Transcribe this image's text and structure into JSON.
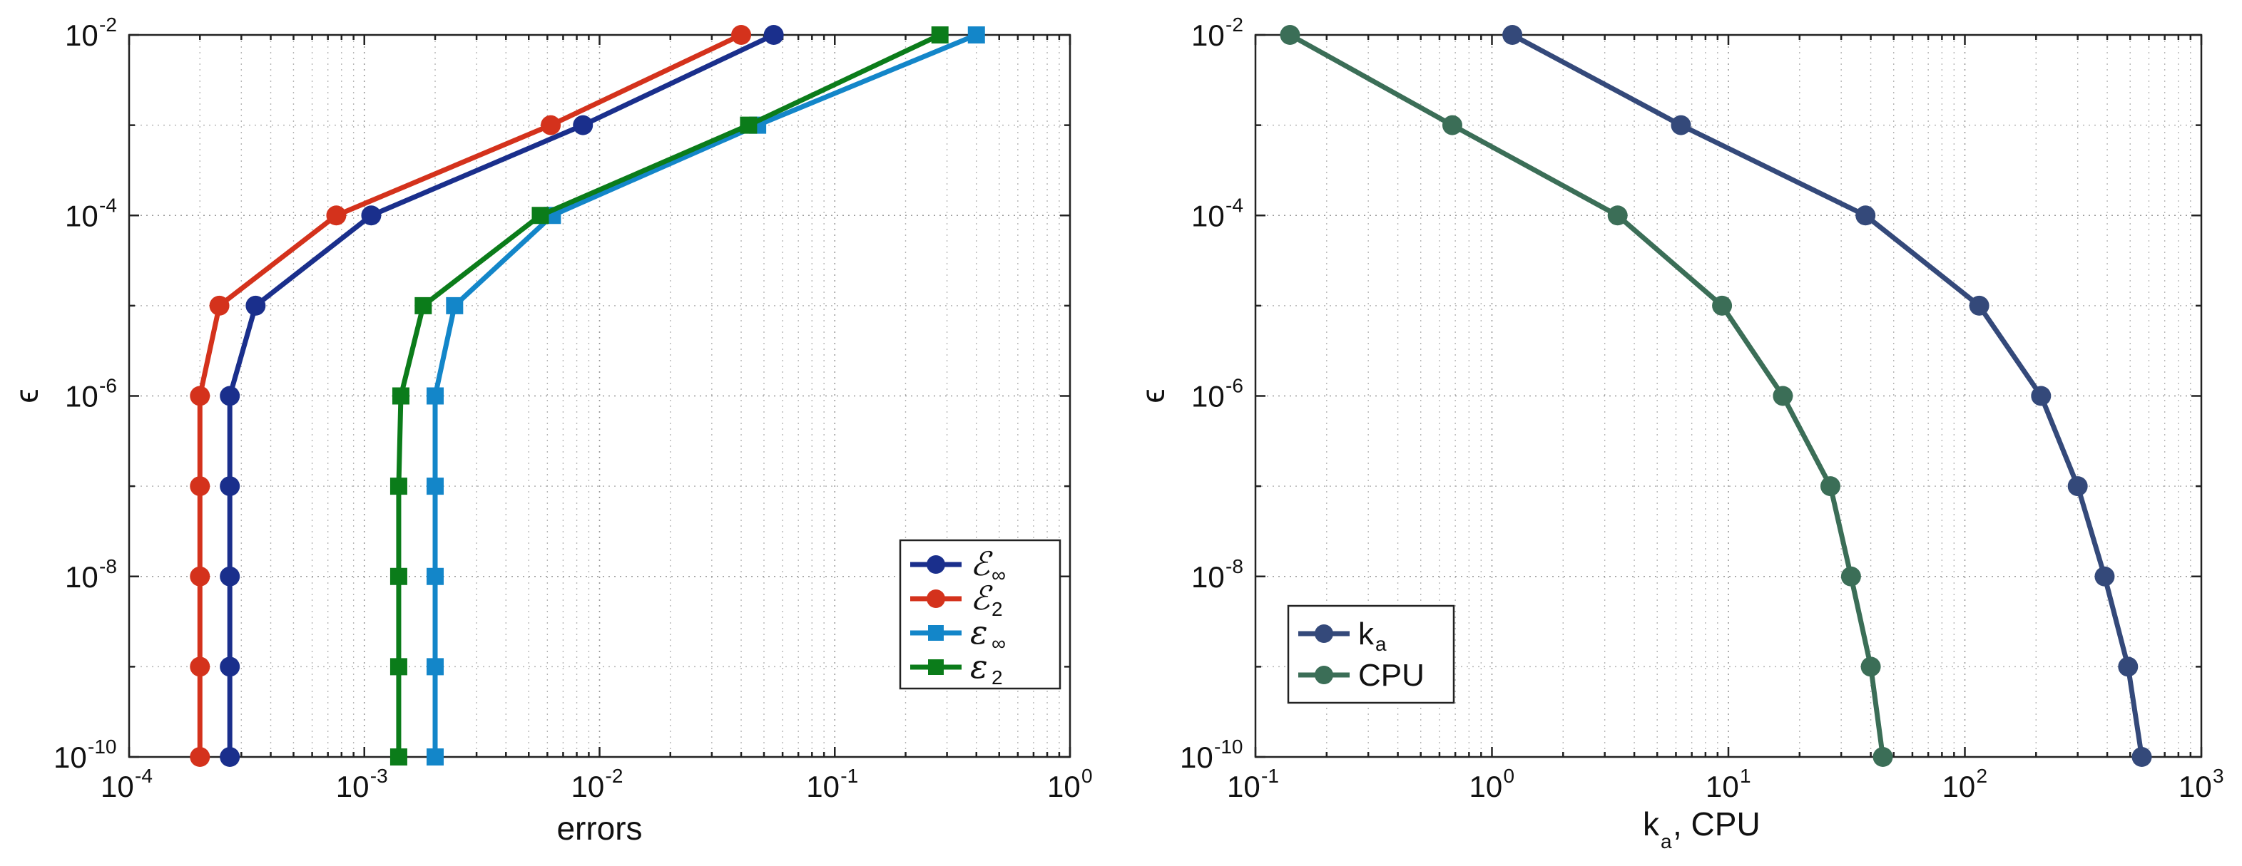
{
  "chart_data": [
    {
      "type": "line",
      "xscale": "log",
      "yscale": "log",
      "xlabel": "errors",
      "ylabel": "ϵ",
      "xlim": [
        0.0001,
        1
      ],
      "ylim": [
        1e-10,
        0.01
      ],
      "x_ticks": [
        {
          "base": "10",
          "exp": "-4"
        },
        {
          "base": "10",
          "exp": "-3"
        },
        {
          "base": "10",
          "exp": "-2"
        },
        {
          "base": "10",
          "exp": "-1"
        },
        {
          "base": "10",
          "exp": "0"
        }
      ],
      "y_ticks": [
        {
          "base": "10",
          "exp": "-2"
        },
        {
          "base": "10",
          "exp": "-4"
        },
        {
          "base": "10",
          "exp": "-6"
        },
        {
          "base": "10",
          "exp": "-8"
        },
        {
          "base": "10",
          "exp": "-10"
        }
      ],
      "legend_position": "bottom-right",
      "series": [
        {
          "name": "E∞",
          "label_main": "ℰ",
          "label_sub": "∞",
          "color": "#1a2f8c",
          "marker": "circle",
          "points": [
            [
              0.055,
              0.01
            ],
            [
              0.0085,
              0.001
            ],
            [
              0.00107,
              0.0001
            ],
            [
              0.000345,
              1e-05
            ],
            [
              0.000268,
              1e-06
            ],
            [
              0.000268,
              1e-07
            ],
            [
              0.000268,
              1e-08
            ],
            [
              0.000268,
              1e-09
            ],
            [
              0.000268,
              1e-10
            ]
          ]
        },
        {
          "name": "E2",
          "label_main": "ℰ",
          "label_sub": "2",
          "color": "#d4321c",
          "marker": "circle",
          "points": [
            [
              0.04,
              0.01
            ],
            [
              0.0062,
              0.001
            ],
            [
              0.00076,
              0.0001
            ],
            [
              0.000242,
              1e-05
            ],
            [
              0.0002,
              1e-06
            ],
            [
              0.0002,
              1e-07
            ],
            [
              0.0002,
              1e-08
            ],
            [
              0.0002,
              1e-09
            ],
            [
              0.0002,
              1e-10
            ]
          ]
        },
        {
          "name": "ε∞",
          "label_main": "ε",
          "label_sub": "∞",
          "color": "#1386c9",
          "marker": "square",
          "points": [
            [
              0.4,
              0.01
            ],
            [
              0.047,
              0.001
            ],
            [
              0.0063,
              0.0001
            ],
            [
              0.00242,
              1e-05
            ],
            [
              0.002,
              1e-06
            ],
            [
              0.002,
              1e-07
            ],
            [
              0.002,
              1e-08
            ],
            [
              0.002,
              1e-09
            ],
            [
              0.002,
              1e-10
            ]
          ]
        },
        {
          "name": "ε2",
          "label_main": "ε",
          "label_sub": "2",
          "color": "#0b7c1a",
          "marker": "square",
          "points": [
            [
              0.28,
              0.01
            ],
            [
              0.043,
              0.001
            ],
            [
              0.0056,
              0.0001
            ],
            [
              0.00178,
              1e-05
            ],
            [
              0.00143,
              1e-06
            ],
            [
              0.0014,
              1e-07
            ],
            [
              0.0014,
              1e-08
            ],
            [
              0.0014,
              1e-09
            ],
            [
              0.0014,
              1e-10
            ]
          ]
        }
      ]
    },
    {
      "type": "line",
      "xscale": "log",
      "yscale": "log",
      "xlabel_main": "k",
      "xlabel_sub": "a",
      "xlabel_rest": ",  CPU",
      "ylabel": "ϵ",
      "xlim": [
        0.1,
        1000
      ],
      "ylim": [
        1e-10,
        0.01
      ],
      "x_ticks": [
        {
          "base": "10",
          "exp": "-1"
        },
        {
          "base": "10",
          "exp": "0"
        },
        {
          "base": "10",
          "exp": "1"
        },
        {
          "base": "10",
          "exp": "2"
        },
        {
          "base": "10",
          "exp": "3"
        }
      ],
      "y_ticks": [
        {
          "base": "10",
          "exp": "-2"
        },
        {
          "base": "10",
          "exp": "-4"
        },
        {
          "base": "10",
          "exp": "-6"
        },
        {
          "base": "10",
          "exp": "-8"
        },
        {
          "base": "10",
          "exp": "-10"
        }
      ],
      "legend_position": "bottom-left",
      "series": [
        {
          "name": "ka",
          "label_main": "k",
          "label_sub": "a",
          "color": "#34497a",
          "marker": "circle",
          "points": [
            [
              1.22,
              0.01
            ],
            [
              6.3,
              0.001
            ],
            [
              38,
              0.0001
            ],
            [
              115,
              1e-05
            ],
            [
              210,
              1e-06
            ],
            [
              300,
              1e-07
            ],
            [
              390,
              1e-08
            ],
            [
              490,
              1e-09
            ],
            [
              560,
              1e-10
            ]
          ]
        },
        {
          "name": "CPU",
          "label_main": "CPU",
          "label_sub": "",
          "color": "#3b6e57",
          "marker": "circle",
          "points": [
            [
              0.14,
              0.01
            ],
            [
              0.68,
              0.001
            ],
            [
              3.4,
              0.0001
            ],
            [
              9.4,
              1e-05
            ],
            [
              17,
              1e-06
            ],
            [
              27,
              1e-07
            ],
            [
              33,
              1e-08
            ],
            [
              40,
              1e-09
            ],
            [
              45,
              1e-10
            ]
          ]
        }
      ]
    }
  ]
}
